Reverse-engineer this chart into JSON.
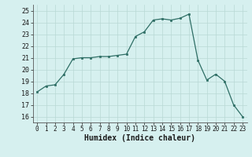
{
  "x": [
    0,
    1,
    2,
    3,
    4,
    5,
    6,
    7,
    8,
    9,
    10,
    11,
    12,
    13,
    14,
    15,
    16,
    17,
    18,
    19,
    20,
    21,
    22,
    23
  ],
  "y": [
    18.1,
    18.6,
    18.7,
    19.6,
    20.9,
    21.0,
    21.0,
    21.1,
    21.1,
    21.2,
    21.3,
    22.8,
    23.2,
    24.2,
    24.3,
    24.2,
    24.35,
    24.7,
    20.8,
    19.1,
    19.6,
    19.0,
    17.0,
    16.0
  ],
  "xlabel": "Humidex (Indice chaleur)",
  "ylim": [
    15.5,
    25.5
  ],
  "xlim": [
    -0.5,
    23.5
  ],
  "bg_color": "#d6f0ef",
  "grid_color": "#b8d8d5",
  "line_color": "#2e6e65",
  "marker_color": "#2e6e65",
  "yticks": [
    16,
    17,
    18,
    19,
    20,
    21,
    22,
    23,
    24,
    25
  ],
  "xtick_labels": [
    "0",
    "1",
    "2",
    "3",
    "4",
    "5",
    "6",
    "7",
    "8",
    "9",
    "10",
    "11",
    "12",
    "13",
    "14",
    "15",
    "16",
    "17",
    "18",
    "19",
    "20",
    "21",
    "22",
    "23"
  ],
  "ytick_fontsize": 6,
  "xtick_fontsize": 5.5,
  "xlabel_fontsize": 7
}
